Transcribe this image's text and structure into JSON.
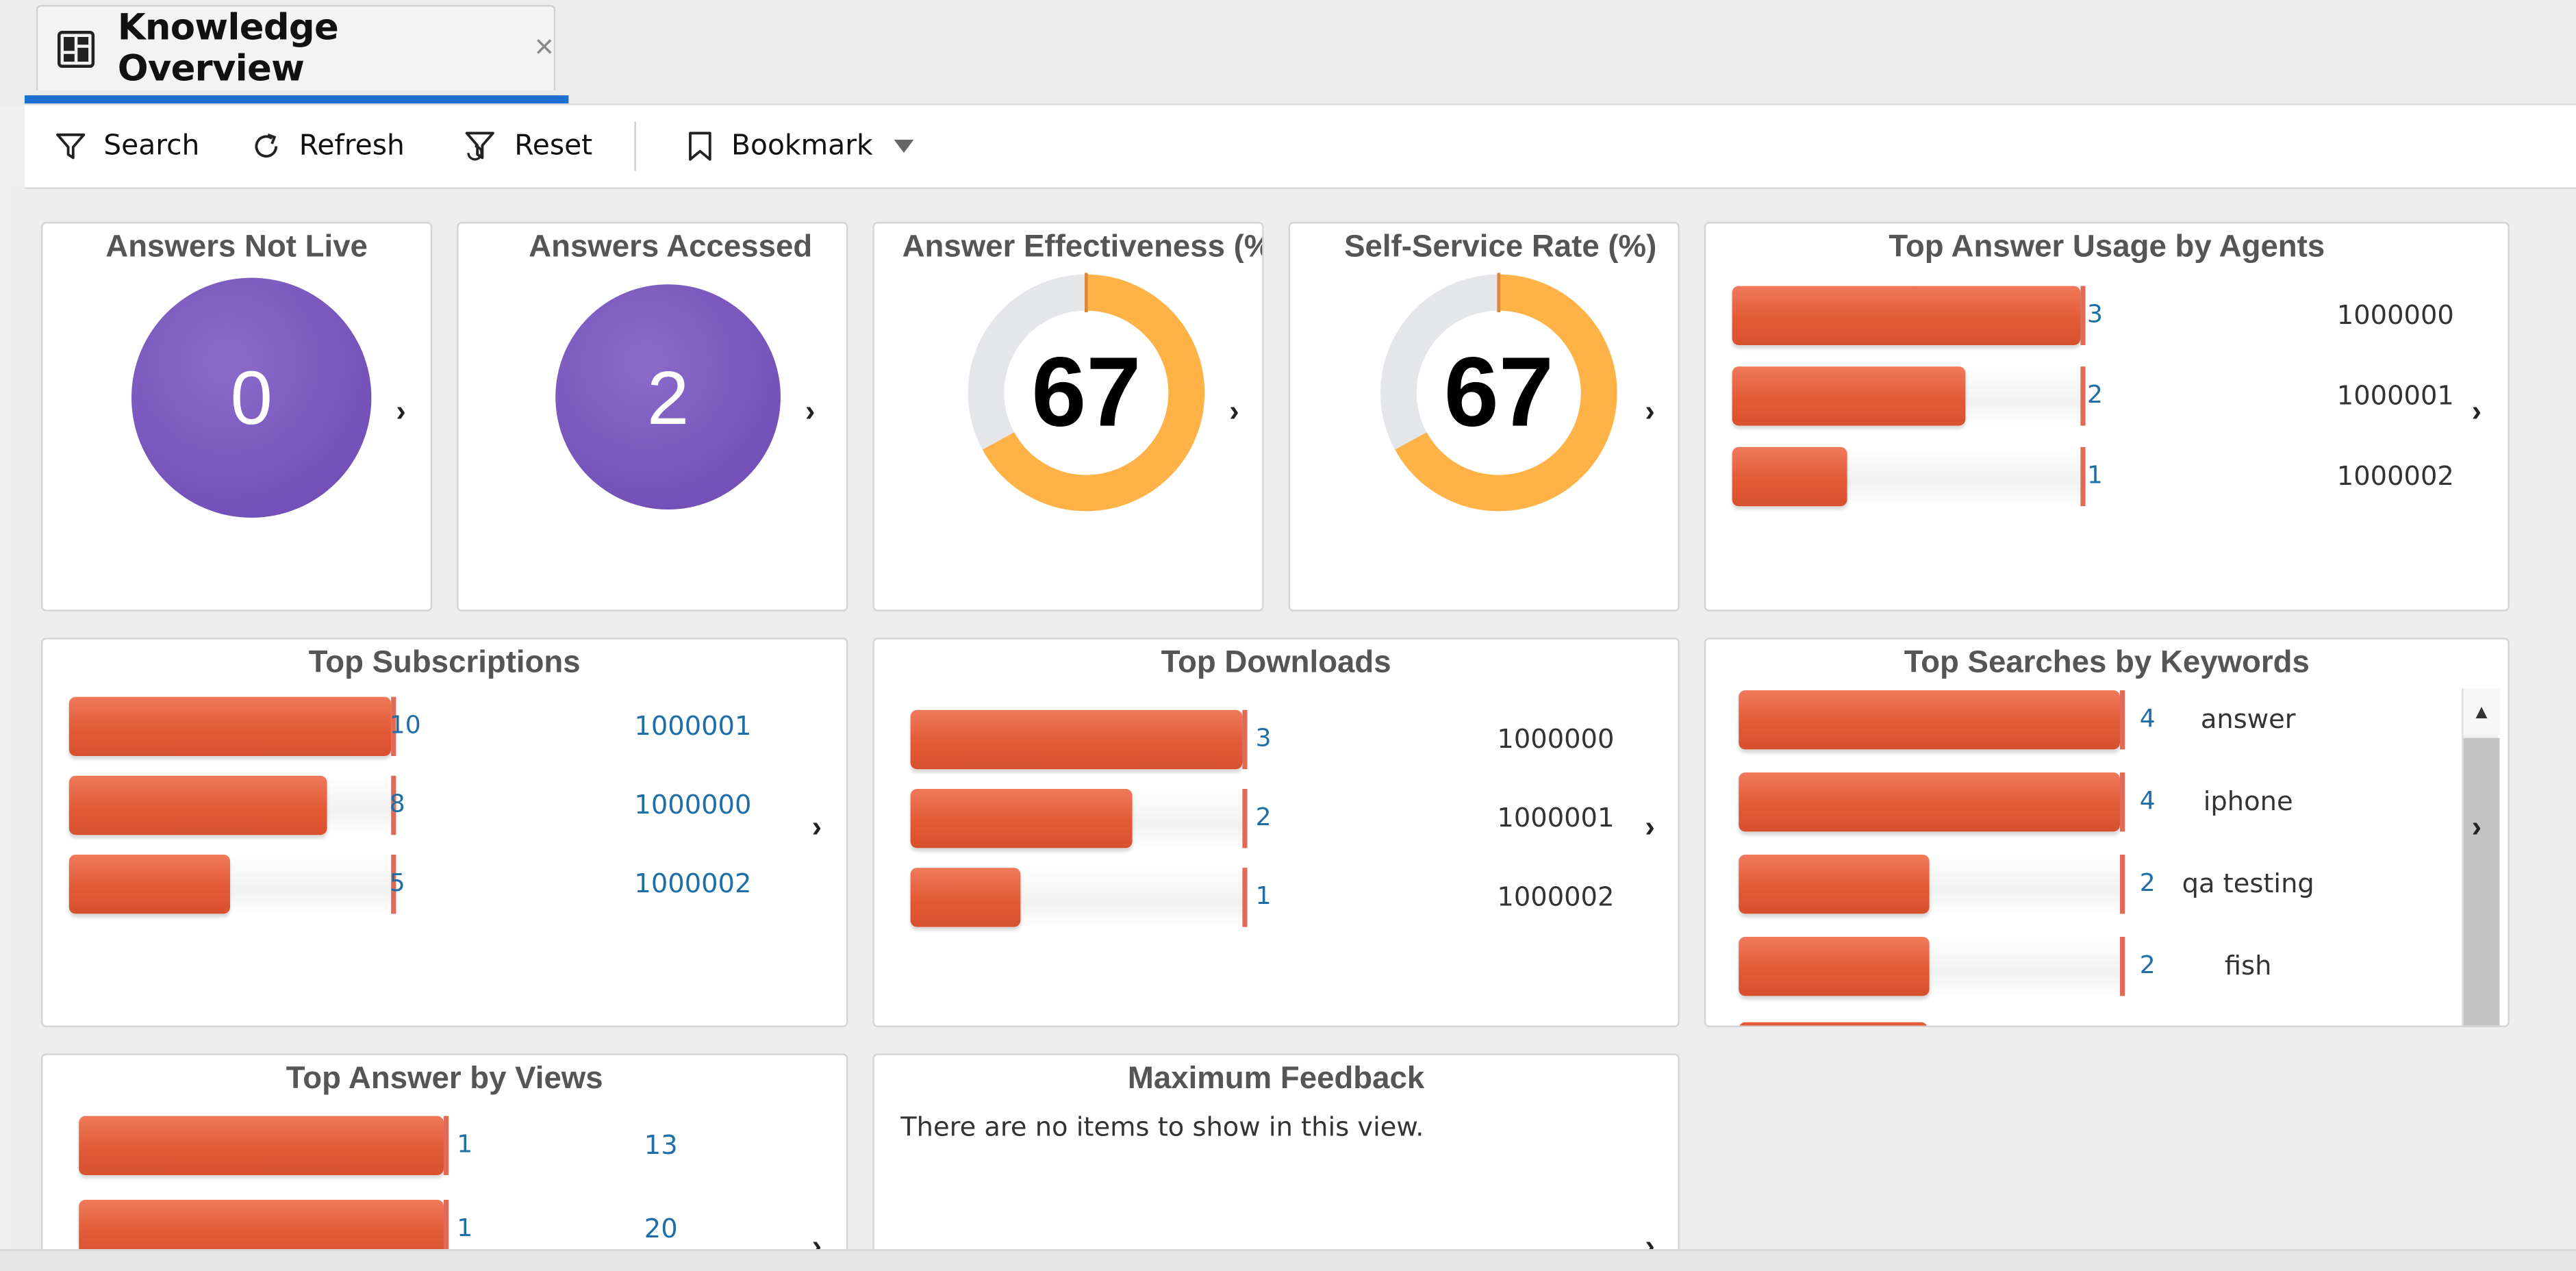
{
  "tab": {
    "title": "Knowledge Overview",
    "close": "×"
  },
  "toolbar": {
    "search": "Search",
    "refresh": "Refresh",
    "reset": "Reset",
    "bookmark": "Bookmark"
  },
  "kpis": {
    "not_live": {
      "title": "Answers Not Live",
      "value": "0"
    },
    "accessed": {
      "title": "Answers Accessed",
      "value": "2"
    },
    "effectiveness": {
      "title": "Answer Effectiveness (%)",
      "value": "67",
      "percent": 67
    },
    "self_service": {
      "title": "Self-Service Rate (%)",
      "value": "67",
      "percent": 67
    }
  },
  "top_usage": {
    "title": "Top Answer Usage by Agents",
    "rows": [
      {
        "value": "3",
        "fraction": 1.0,
        "label": "1000000"
      },
      {
        "value": "2",
        "fraction": 0.67,
        "label": "1000001"
      },
      {
        "value": "1",
        "fraction": 0.33,
        "label": "1000002"
      }
    ]
  },
  "top_subscriptions": {
    "title": "Top Subscriptions",
    "rows": [
      {
        "value": "10",
        "fraction": 1.0,
        "label": "1000001"
      },
      {
        "value": "8",
        "fraction": 0.8,
        "label": "1000000"
      },
      {
        "value": "5",
        "fraction": 0.5,
        "label": "1000002"
      }
    ]
  },
  "top_downloads": {
    "title": "Top Downloads",
    "rows": [
      {
        "value": "3",
        "fraction": 1.0,
        "label": "1000000"
      },
      {
        "value": "2",
        "fraction": 0.67,
        "label": "1000001"
      },
      {
        "value": "1",
        "fraction": 0.33,
        "label": "1000002"
      }
    ]
  },
  "top_searches": {
    "title": "Top Searches by Keywords",
    "rows": [
      {
        "value": "4",
        "fraction": 1.0,
        "label": "answer"
      },
      {
        "value": "4",
        "fraction": 1.0,
        "label": "iphone"
      },
      {
        "value": "2",
        "fraction": 0.5,
        "label": "qa testing"
      },
      {
        "value": "2",
        "fraction": 0.5,
        "label": "fish"
      }
    ]
  },
  "top_views": {
    "title": "Top Answer by Views",
    "rows": [
      {
        "value": "1",
        "fraction": 1.0,
        "label": "13"
      },
      {
        "value": "1",
        "fraction": 1.0,
        "label": "20"
      }
    ]
  },
  "max_feedback": {
    "title": "Maximum Feedback",
    "empty": "There are no items to show in this view."
  },
  "colors": {
    "accent": "#1a6fd1",
    "bar": "#e35a36",
    "kpi_circle": "#7552b9",
    "donut_fill": "#ffb347",
    "donut_track": "#e4e6ea",
    "value_text": "#1e6ea7"
  },
  "icons": {
    "tab": "dashboard-icon",
    "search": "filter-icon",
    "refresh": "refresh-icon",
    "reset": "filter-reset-icon",
    "bookmark": "bookmark-icon",
    "bookmark_menu": "caret-down-icon",
    "drill": "chevron-right-icon"
  }
}
